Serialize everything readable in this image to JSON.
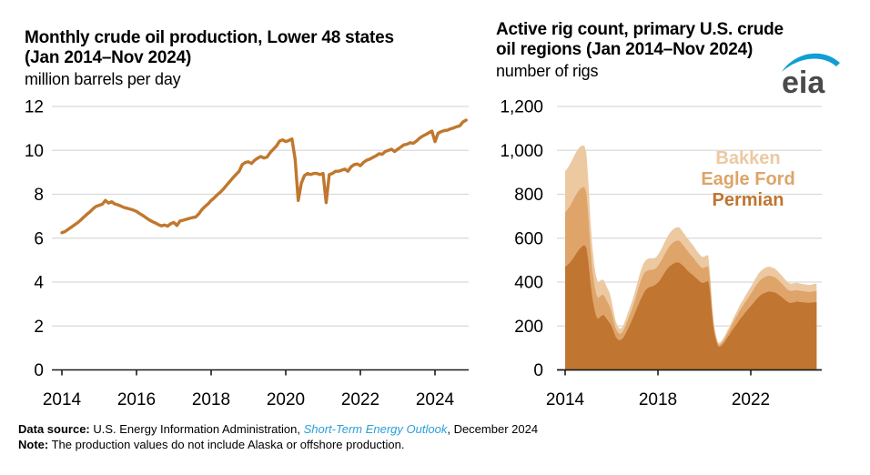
{
  "logo": {
    "text": "eia",
    "text_color": "#4a4a4a",
    "swoosh_color": "#0f9ed5"
  },
  "footer": {
    "source_label": "Data source:",
    "source_text": " U.S. Energy Information Administration, ",
    "source_link": "Short-Term Energy Outlook",
    "source_suffix": ", December 2024",
    "note_label": "Note:",
    "note_text": " The production values do not include Alaska or offshore production.",
    "link_color": "#2b9fd9"
  },
  "chart_data": [
    {
      "type": "line",
      "title_line1": "Monthly crude oil production, Lower 48 states",
      "title_line2": "(Jan 2014–Nov 2024)",
      "ylabel": "million barrels per day",
      "x_start_year": 2014,
      "x_step": "month",
      "x_range_label": "Jan 2014–Nov 2024",
      "x_ticks": [
        2014,
        2016,
        2018,
        2020,
        2022,
        2024
      ],
      "ylim": [
        0,
        12
      ],
      "grid": true,
      "color": "#c0772e",
      "yticks": [
        {
          "value": 12,
          "label": "12"
        },
        {
          "value": 10,
          "label": "10"
        },
        {
          "value": 8,
          "label": "8"
        },
        {
          "value": 6,
          "label": "6"
        },
        {
          "value": 4,
          "label": "4"
        },
        {
          "value": 2,
          "label": "2"
        },
        {
          "value": 0,
          "label": "0"
        }
      ],
      "values": [
        6.25,
        6.3,
        6.4,
        6.5,
        6.6,
        6.7,
        6.82,
        6.95,
        7.08,
        7.2,
        7.34,
        7.45,
        7.5,
        7.55,
        7.72,
        7.6,
        7.66,
        7.56,
        7.52,
        7.46,
        7.4,
        7.36,
        7.32,
        7.28,
        7.22,
        7.12,
        7.04,
        6.94,
        6.84,
        6.76,
        6.7,
        6.62,
        6.56,
        6.6,
        6.55,
        6.66,
        6.72,
        6.58,
        6.78,
        6.82,
        6.86,
        6.9,
        6.94,
        6.96,
        7.1,
        7.3,
        7.44,
        7.56,
        7.72,
        7.84,
        7.98,
        8.1,
        8.25,
        8.42,
        8.58,
        8.75,
        8.9,
        9.05,
        9.35,
        9.45,
        9.48,
        9.4,
        9.55,
        9.65,
        9.72,
        9.65,
        9.7,
        9.9,
        10.05,
        10.2,
        10.42,
        10.48,
        10.4,
        10.45,
        10.52,
        9.6,
        7.72,
        8.5,
        8.85,
        8.95,
        8.9,
        8.95,
        8.95,
        8.9,
        8.95,
        7.62,
        8.9,
        8.95,
        9.05,
        9.05,
        9.1,
        9.15,
        9.05,
        9.25,
        9.35,
        9.38,
        9.3,
        9.45,
        9.55,
        9.6,
        9.68,
        9.75,
        9.85,
        9.82,
        9.95,
        10.0,
        10.05,
        9.95,
        10.05,
        10.15,
        10.25,
        10.28,
        10.35,
        10.32,
        10.42,
        10.55,
        10.65,
        10.72,
        10.8,
        10.88,
        10.4,
        10.78,
        10.85,
        10.9,
        10.92,
        10.98,
        11.02,
        11.08,
        11.12,
        11.3,
        11.38
      ]
    },
    {
      "type": "area",
      "stacked": true,
      "title_line1": "Active rig count, primary U.S. crude",
      "title_line2": "oil regions (Jan 2014–Nov 2024)",
      "ylabel": "number of rigs",
      "x_start_year": 2014,
      "x_step": "month",
      "x_range_label": "Jan 2014–Nov 2024",
      "x_ticks": [
        2014,
        2018,
        2022
      ],
      "ylim": [
        0,
        1200
      ],
      "grid": true,
      "legend_position": "upper right",
      "legend_order_top_to_bottom": [
        "Bakken",
        "Eagle Ford",
        "Permian"
      ],
      "yticks": [
        {
          "value": 1200,
          "label": "1,200"
        },
        {
          "value": 1000,
          "label": "1,000"
        },
        {
          "value": 800,
          "label": "800"
        },
        {
          "value": 600,
          "label": "600"
        },
        {
          "value": 400,
          "label": "400"
        },
        {
          "value": 200,
          "label": "200"
        },
        {
          "value": 0,
          "label": "0"
        }
      ],
      "series": [
        {
          "name": "Permian",
          "color": "#c07530",
          "values": [
            470,
            476,
            484,
            494,
            506,
            520,
            534,
            546,
            556,
            564,
            568,
            556,
            495,
            405,
            330,
            280,
            245,
            232,
            240,
            248,
            250,
            238,
            226,
            215,
            200,
            178,
            152,
            140,
            135,
            137,
            146,
            160,
            178,
            196,
            215,
            236,
            256,
            278,
            300,
            320,
            338,
            356,
            368,
            374,
            378,
            380,
            384,
            390,
            398,
            408,
            422,
            436,
            450,
            462,
            472,
            478,
            484,
            488,
            490,
            488,
            482,
            474,
            465,
            455,
            446,
            438,
            432,
            424,
            416,
            408,
            400,
            396,
            398,
            402,
            405,
            348,
            246,
            172,
            134,
            108,
            105,
            112,
            122,
            134,
            148,
            160,
            175,
            188,
            200,
            212,
            226,
            238,
            248,
            260,
            270,
            280,
            290,
            300,
            312,
            322,
            332,
            340,
            346,
            350,
            353,
            356,
            357,
            355,
            354,
            350,
            345,
            338,
            332,
            324,
            316,
            310,
            306,
            305,
            307,
            309,
            312,
            310,
            309,
            308,
            307,
            306,
            306,
            306,
            307,
            308,
            309
          ]
        },
        {
          "name": "Eagle Ford",
          "color": "#dea46a",
          "values": [
            248,
            252,
            256,
            260,
            264,
            267,
            269,
            270,
            270,
            268,
            264,
            250,
            205,
            160,
            130,
            112,
            102,
            94,
            94,
            94,
            90,
            86,
            80,
            76,
            64,
            50,
            40,
            34,
            30,
            29,
            32,
            36,
            40,
            44,
            48,
            52,
            58,
            66,
            75,
            83,
            88,
            86,
            82,
            80,
            78,
            76,
            74,
            73,
            75,
            78,
            80,
            83,
            85,
            88,
            92,
            95,
            97,
            98,
            99,
            100,
            97,
            94,
            92,
            90,
            88,
            85,
            82,
            78,
            74,
            72,
            70,
            68,
            68,
            68,
            67,
            48,
            30,
            20,
            13,
            9,
            9,
            11,
            14,
            17,
            20,
            22,
            26,
            30,
            33,
            36,
            40,
            42,
            44,
            47,
            50,
            52,
            56,
            60,
            63,
            66,
            68,
            70,
            71,
            72,
            73,
            73,
            72,
            71,
            70,
            68,
            66,
            64,
            62,
            60,
            58,
            56,
            55,
            54,
            54,
            53,
            52,
            51,
            51,
            50,
            50,
            50,
            49,
            49,
            50,
            51,
            50
          ]
        },
        {
          "name": "Bakken",
          "color": "#ecc9a1",
          "values": [
            186,
            188,
            190,
            192,
            193,
            194,
            194,
            193,
            192,
            191,
            188,
            180,
            158,
            128,
            106,
            90,
            80,
            74,
            71,
            70,
            68,
            65,
            63,
            60,
            52,
            42,
            34,
            28,
            24,
            22,
            24,
            27,
            30,
            32,
            34,
            36,
            38,
            41,
            44,
            46,
            48,
            50,
            52,
            53,
            53,
            52,
            51,
            50,
            51,
            52,
            53,
            55,
            56,
            58,
            59,
            60,
            60,
            61,
            61,
            62,
            60,
            59,
            58,
            57,
            57,
            56,
            55,
            54,
            53,
            52,
            51,
            50,
            50,
            51,
            50,
            34,
            19,
            12,
            10,
            9,
            9,
            10,
            11,
            12,
            13,
            14,
            16,
            18,
            20,
            22,
            23,
            25,
            26,
            28,
            30,
            31,
            32,
            33,
            35,
            36,
            38,
            39,
            40,
            40,
            41,
            41,
            41,
            40,
            40,
            39,
            38,
            37,
            37,
            36,
            35,
            35,
            34,
            34,
            34,
            34,
            34,
            33,
            33,
            33,
            33,
            32,
            32,
            32,
            33,
            34,
            33
          ]
        }
      ]
    }
  ]
}
